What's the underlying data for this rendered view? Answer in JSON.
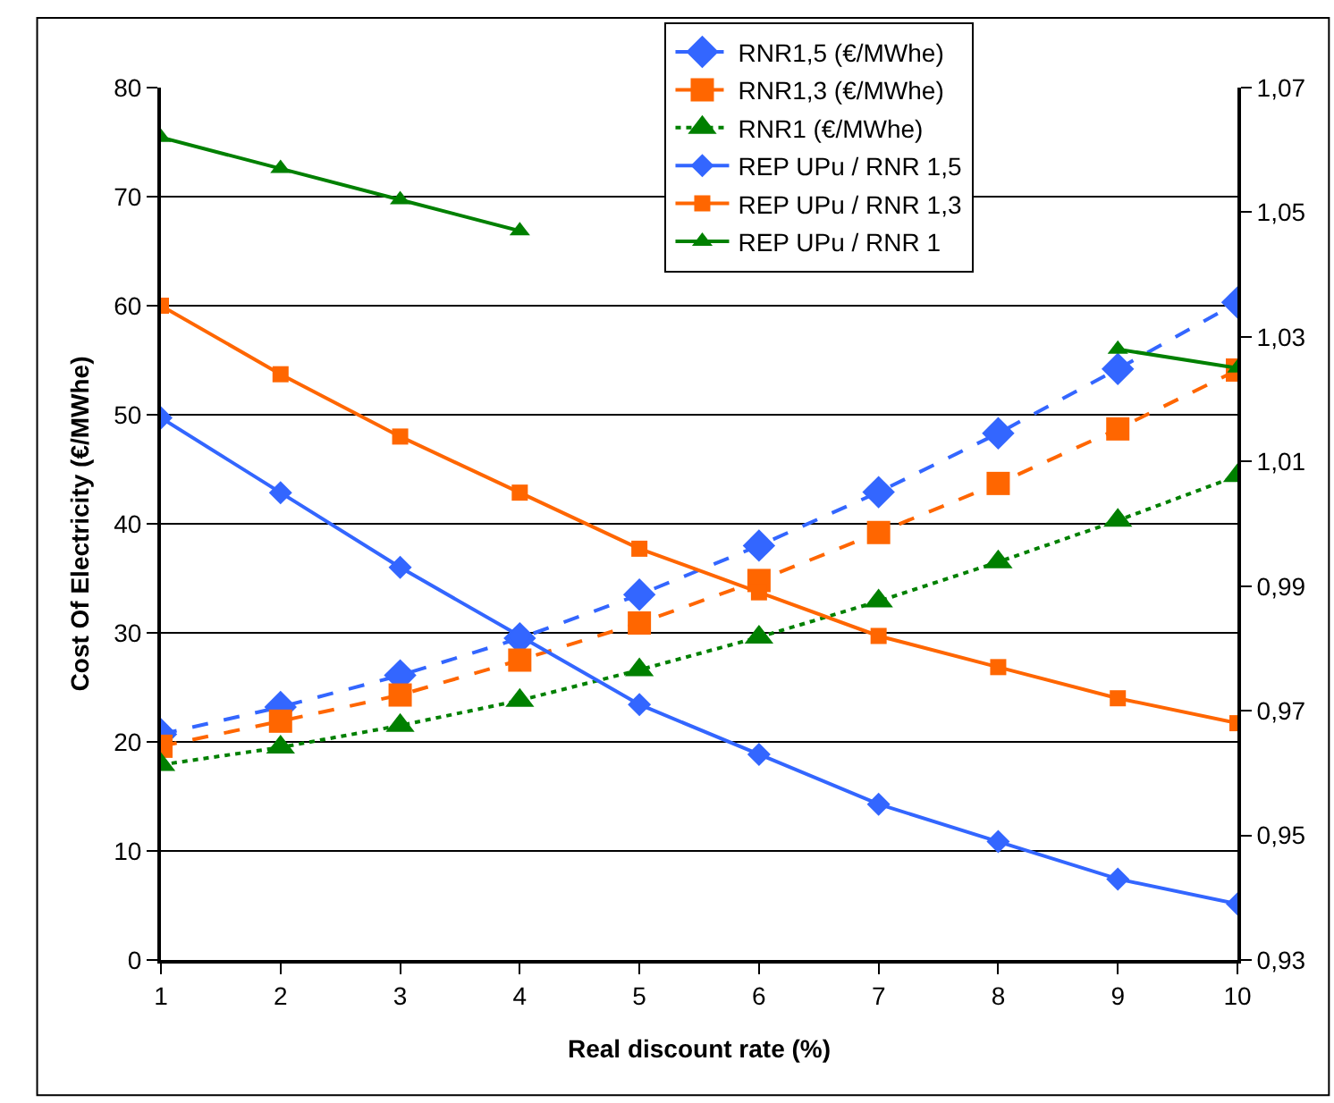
{
  "chart_data": {
    "type": "line",
    "xlabel": "Real discount rate (%)",
    "ylabel": "Cost Of Electricity (€/MWhe)",
    "x": [
      1,
      2,
      3,
      4,
      5,
      6,
      7,
      8,
      9,
      10
    ],
    "xlim": [
      1,
      10
    ],
    "xticks": [
      1,
      2,
      3,
      4,
      5,
      6,
      7,
      8,
      9,
      10
    ],
    "ylim": [
      0,
      80
    ],
    "yticks": [
      0,
      10,
      20,
      30,
      40,
      50,
      60,
      70,
      80
    ],
    "y2lim": [
      0.93,
      1.07
    ],
    "y2ticks": [
      {
        "value": 0.93,
        "label": "0,93"
      },
      {
        "value": 0.95,
        "label": "0,95"
      },
      {
        "value": 0.97,
        "label": "0,97"
      },
      {
        "value": 0.99,
        "label": "0,99"
      },
      {
        "value": 1.01,
        "label": "1,01"
      },
      {
        "value": 1.03,
        "label": "1,03"
      },
      {
        "value": 1.05,
        "label": "1,05"
      },
      {
        "value": 1.07,
        "label": "1,07"
      }
    ],
    "grid": "y",
    "legend": "top right",
    "series": [
      {
        "name": "RNR1,5 (€/MWhe)",
        "color": "#3366ff",
        "marker": "diamond",
        "line_style": "dashed",
        "values": [
          20.7,
          23.2,
          26.1,
          29.5,
          33.5,
          38.0,
          42.9,
          48.3,
          54.2,
          60.3
        ]
      },
      {
        "name": "RNR1,3 (€/MWhe)",
        "color": "#ff6600",
        "marker": "square",
        "line_style": "dashed",
        "values": [
          19.6,
          21.9,
          24.3,
          27.5,
          30.9,
          34.8,
          39.2,
          43.7,
          48.7,
          54.1
        ]
      },
      {
        "name": "RNR1 (€/MWhe)",
        "color": "#008000",
        "marker": "triangle",
        "line_style": "dotted",
        "values": [
          17.9,
          19.5,
          21.5,
          23.8,
          26.6,
          29.6,
          32.9,
          36.5,
          40.3,
          44.4
        ]
      },
      {
        "name": "REP UPu / RNR 1,5",
        "color": "#3366ff",
        "marker": "diamond",
        "line_style": "solid",
        "axis": "y2",
        "values": [
          1.017,
          1.005,
          0.993,
          0.982,
          0.971,
          0.963,
          0.955,
          0.949,
          0.943,
          0.939
        ]
      },
      {
        "name": "REP UPu / RNR 1,3",
        "color": "#ff6600",
        "marker": "square",
        "line_style": "solid",
        "axis": "y2",
        "values": [
          1.035,
          1.024,
          1.014,
          1.005,
          0.996,
          0.989,
          0.982,
          0.977,
          0.972,
          0.968
        ]
      },
      {
        "name": "REP UPu / RNR 1",
        "color": "#008000",
        "marker": "triangle",
        "line_style": "solid",
        "axis": "y2",
        "values": [
          1.062,
          1.057,
          1.052,
          1.047,
          null,
          null,
          null,
          null,
          1.028,
          1.025
        ]
      }
    ]
  }
}
